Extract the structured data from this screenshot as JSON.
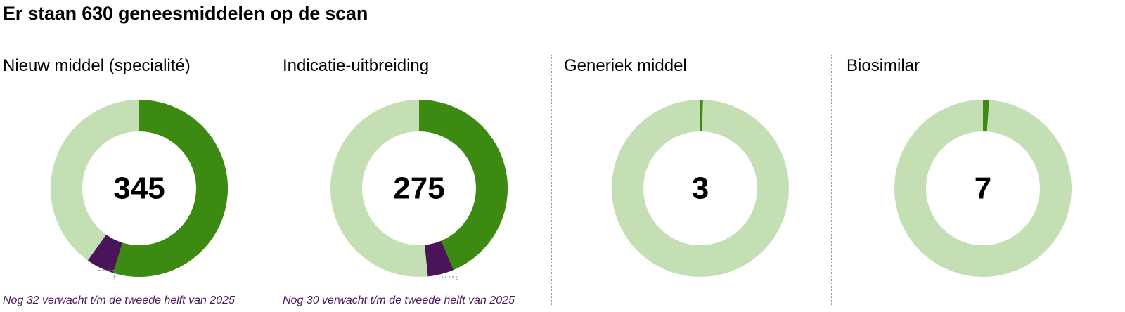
{
  "title": "Er staan 630 geneesmiddelen op de scan",
  "colors": {
    "ring_background": "#c5dfb4",
    "on_scan": "#3c8a12",
    "expected": "#4a1558",
    "note_text": "#4a1558"
  },
  "chart_data": [
    {
      "type": "pie",
      "style": "donut",
      "title": "Nieuw middel (specialité)",
      "center_value": "345",
      "total": 630,
      "segments": [
        {
          "value": 345,
          "color": "#3c8a12"
        },
        {
          "value": 32,
          "color": "#4a1558"
        }
      ],
      "note": "Nog 32 verwacht t/m de tweede helft van 2025"
    },
    {
      "type": "pie",
      "style": "donut",
      "title": "Indicatie-uitbreiding",
      "center_value": "275",
      "total": 630,
      "segments": [
        {
          "value": 275,
          "color": "#3c8a12"
        },
        {
          "value": 30,
          "color": "#4a1558"
        }
      ],
      "note": "Nog 30 verwacht t/m de tweede helft van 2025"
    },
    {
      "type": "pie",
      "style": "donut",
      "title": "Generiek middel",
      "center_value": "3",
      "total": 630,
      "segments": [
        {
          "value": 3,
          "color": "#3c8a12"
        }
      ],
      "note": ""
    },
    {
      "type": "pie",
      "style": "donut",
      "title": "Biosimilar",
      "center_value": "7",
      "total": 630,
      "segments": [
        {
          "value": 7,
          "color": "#3c8a12"
        }
      ],
      "note": ""
    }
  ]
}
